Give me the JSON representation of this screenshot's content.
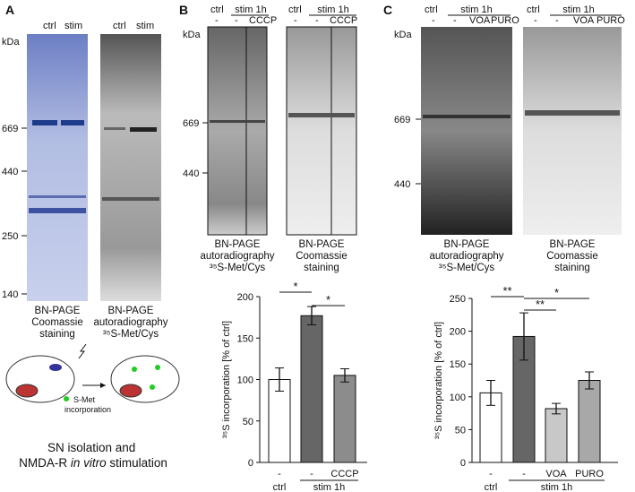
{
  "panels": {
    "a": {
      "label": "A",
      "lanes": [
        "ctrl",
        "stim"
      ],
      "lanes2": [
        "ctrl",
        "stim"
      ],
      "kda": "kDa",
      "markers": [
        "669",
        "440",
        "250",
        "140"
      ],
      "gel1_caption": [
        "BN-PAGE",
        "Coomassie",
        "staining"
      ],
      "gel2_caption": [
        "BN-PAGE",
        "autoradiography",
        "³⁵S-Met/Cys"
      ],
      "scheme_label": [
        "S-Met",
        "incorporation"
      ],
      "title": [
        "SN isolation and",
        "NMDA-R",
        "in vitro",
        "stimulation"
      ]
    },
    "b": {
      "label": "B",
      "kda": "kDa",
      "markers": [
        "669",
        "440"
      ],
      "gel1_header": [
        "ctrl",
        "stim 1h",
        "-",
        "-",
        "CCCP"
      ],
      "gel2_header": [
        "ctrl",
        "stim 1h",
        "-",
        "-",
        "CCCP"
      ],
      "gel1_caption": [
        "BN-PAGE",
        "autoradiography",
        "³⁵S-Met/Cys"
      ],
      "gel2_caption": [
        "BN-PAGE",
        "Coomassie",
        "staining"
      ]
    },
    "c": {
      "label": "C",
      "kda": "kDa",
      "markers": [
        "669",
        "440"
      ],
      "gel1_header": [
        "ctrl",
        "stim 1h",
        "-",
        "-",
        "VOA",
        "PURO"
      ],
      "gel2_header": [
        "ctrl",
        "stim 1h",
        "-",
        "-",
        "VOA",
        "PURO"
      ],
      "gel1_caption": [
        "BN-PAGE",
        "autoradiography",
        "³⁵S-Met/Cys"
      ],
      "gel2_caption": [
        "BN-PAGE",
        "Coomassie",
        "staining"
      ]
    }
  },
  "chart_data": [
    {
      "type": "bar",
      "y_label": "³⁵S incorporation [% of ctrl]",
      "categories": [
        "-",
        "-",
        "CCCP"
      ],
      "groups": [
        "ctrl",
        "stim 1h"
      ],
      "values": [
        100,
        177,
        105
      ],
      "errors": [
        14,
        11,
        8
      ],
      "colors": [
        "#ffffff",
        "#666666",
        "#8c8c8c"
      ],
      "significance": [
        "*",
        "*"
      ],
      "ylim": [
        0,
        200
      ],
      "yticks": [
        0,
        50,
        100,
        150,
        200
      ]
    },
    {
      "type": "bar",
      "y_label": "³⁵S incorporation [% of ctrl]",
      "categories": [
        "-",
        "-",
        "VOA",
        "PURO"
      ],
      "groups": [
        "ctrl",
        "stim 1h"
      ],
      "values": [
        106,
        192,
        82,
        125
      ],
      "errors": [
        19,
        36,
        8,
        13
      ],
      "colors": [
        "#ffffff",
        "#666666",
        "#c8c8c8",
        "#a8a8a8"
      ],
      "significance": [
        "**",
        "**",
        "*"
      ],
      "ylim": [
        0,
        250
      ],
      "yticks": [
        0,
        50,
        100,
        150,
        200,
        250
      ]
    }
  ]
}
